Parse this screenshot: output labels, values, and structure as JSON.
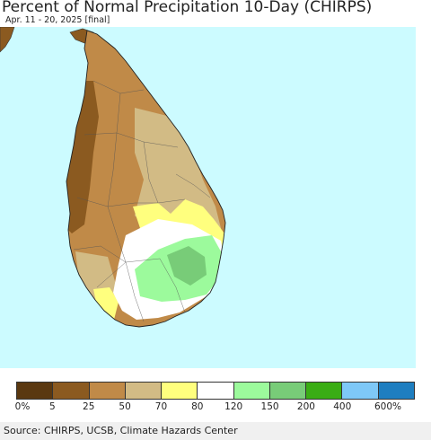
{
  "header": {
    "title": "Percent of Normal Precipitation 10-Day (CHIRPS)",
    "subtitle": "Apr. 11 - 20, 2025 [final]"
  },
  "legend": {
    "colors": [
      "#5a3810",
      "#8b5a20",
      "#c08a48",
      "#d2bb85",
      "#ffff7e",
      "#ffffff",
      "#9cfa9c",
      "#78cc78",
      "#3aad14",
      "#7ec8f7",
      "#1e7ec0"
    ],
    "labels": [
      "0%",
      "5",
      "25",
      "50",
      "70",
      "80",
      "120",
      "150",
      "200",
      "400",
      "600%"
    ]
  },
  "map": {
    "ocean_color": "#ccfbff",
    "land_colors": {
      "very_dry": "#8b5a20",
      "dry": "#c08a48",
      "below": "#d2bb85",
      "slightly_below": "#ffff7e",
      "normal": "#ffffff",
      "above": "#9cfa9c",
      "well_above": "#78cc78"
    }
  },
  "footer": {
    "source": "Source: CHIRPS, UCSB, Climate Hazards Center"
  }
}
